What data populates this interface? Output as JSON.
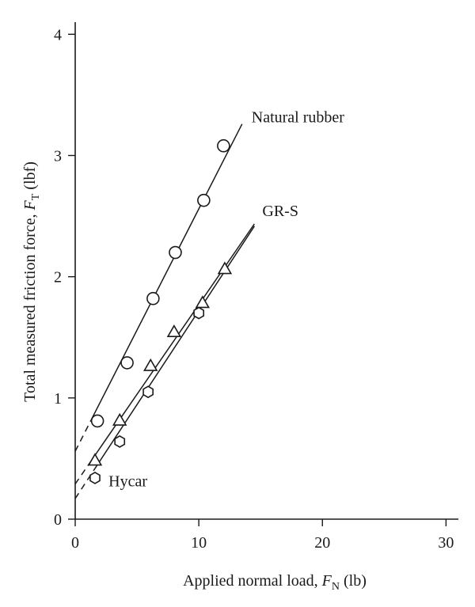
{
  "chart_data": {
    "type": "scatter",
    "title": "",
    "xlabel": {
      "text": "Applied normal load, ",
      "symbol": "F",
      "sub": "N",
      "unit": " (lb)"
    },
    "ylabel": {
      "text": "Total measured friction force, ",
      "symbol": "F",
      "sub": "T",
      "unit": " (lbf)"
    },
    "xlim": [
      0,
      31
    ],
    "ylim": [
      0,
      4.1
    ],
    "xticks": [
      0,
      10,
      20,
      30
    ],
    "yticks": [
      0,
      1,
      2,
      3,
      4
    ],
    "grid": false,
    "series": [
      {
        "name": "Natural rubber",
        "marker": "circle",
        "x": [
          1.8,
          4.2,
          6.3,
          8.1,
          10.4,
          12.0
        ],
        "y": [
          0.81,
          1.29,
          1.82,
          2.2,
          2.63,
          3.08
        ],
        "fit": {
          "intercept": 0.56,
          "slope": 0.2,
          "dashed_to": 1.3,
          "end": 13.5
        }
      },
      {
        "name": "GR-S",
        "marker": "triangle",
        "x": [
          1.6,
          3.6,
          6.1,
          8.0,
          10.3,
          12.1
        ],
        "y": [
          0.48,
          0.81,
          1.26,
          1.54,
          1.78,
          2.06
        ],
        "fit": {
          "intercept": 0.29,
          "slope": 0.148,
          "dashed_to": 1.2,
          "end": 14.5
        }
      },
      {
        "name": "Hycar",
        "marker": "hexagon",
        "x": [
          1.6,
          3.6,
          5.9,
          10.0
        ],
        "y": [
          0.34,
          0.64,
          1.05,
          1.7
        ],
        "fit": {
          "intercept": 0.17,
          "slope": 0.155,
          "dashed_to": 1.5,
          "end": 14.5
        }
      }
    ]
  }
}
